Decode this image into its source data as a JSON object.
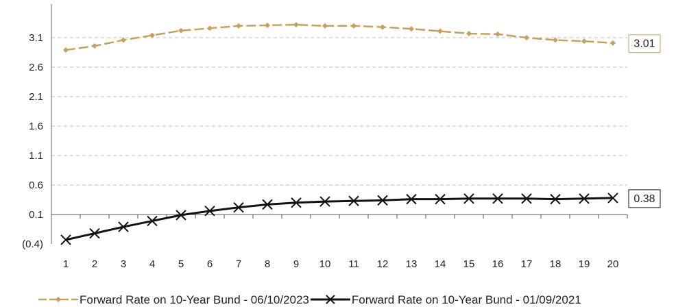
{
  "chart_data": {
    "type": "line",
    "title": "",
    "xlabel": "",
    "ylabel": "",
    "x": [
      1,
      2,
      3,
      4,
      5,
      6,
      7,
      8,
      9,
      10,
      11,
      12,
      13,
      14,
      15,
      16,
      17,
      18,
      19,
      20
    ],
    "ylim": [
      -0.4,
      3.6
    ],
    "y_ticks": [
      -0.4,
      0.1,
      0.6,
      1.1,
      1.6,
      2.1,
      2.6,
      3.1
    ],
    "y_tick_labels": [
      "(0.4)",
      "0.1",
      "0.6",
      "1.1",
      "1.6",
      "2.1",
      "2.6",
      "3.1"
    ],
    "grid": true,
    "legend_position": "bottom",
    "series": [
      {
        "name": "Forward Rate on 10-Year Bund - 06/10/2023",
        "color": "#c8a05a",
        "marker": "diamond",
        "dash": true,
        "values": [
          2.89,
          2.96,
          3.06,
          3.14,
          3.22,
          3.26,
          3.3,
          3.31,
          3.32,
          3.3,
          3.3,
          3.28,
          3.25,
          3.21,
          3.17,
          3.16,
          3.1,
          3.06,
          3.04,
          3.01
        ],
        "end_label": "3.01"
      },
      {
        "name": "Forward Rate on 10-Year Bund - 01/09/2021",
        "color": "#111111",
        "marker": "x",
        "dash": false,
        "values": [
          -0.33,
          -0.22,
          -0.11,
          -0.01,
          0.09,
          0.16,
          0.22,
          0.27,
          0.3,
          0.32,
          0.33,
          0.34,
          0.36,
          0.36,
          0.37,
          0.37,
          0.37,
          0.36,
          0.37,
          0.38
        ],
        "end_label": "0.38"
      }
    ]
  }
}
